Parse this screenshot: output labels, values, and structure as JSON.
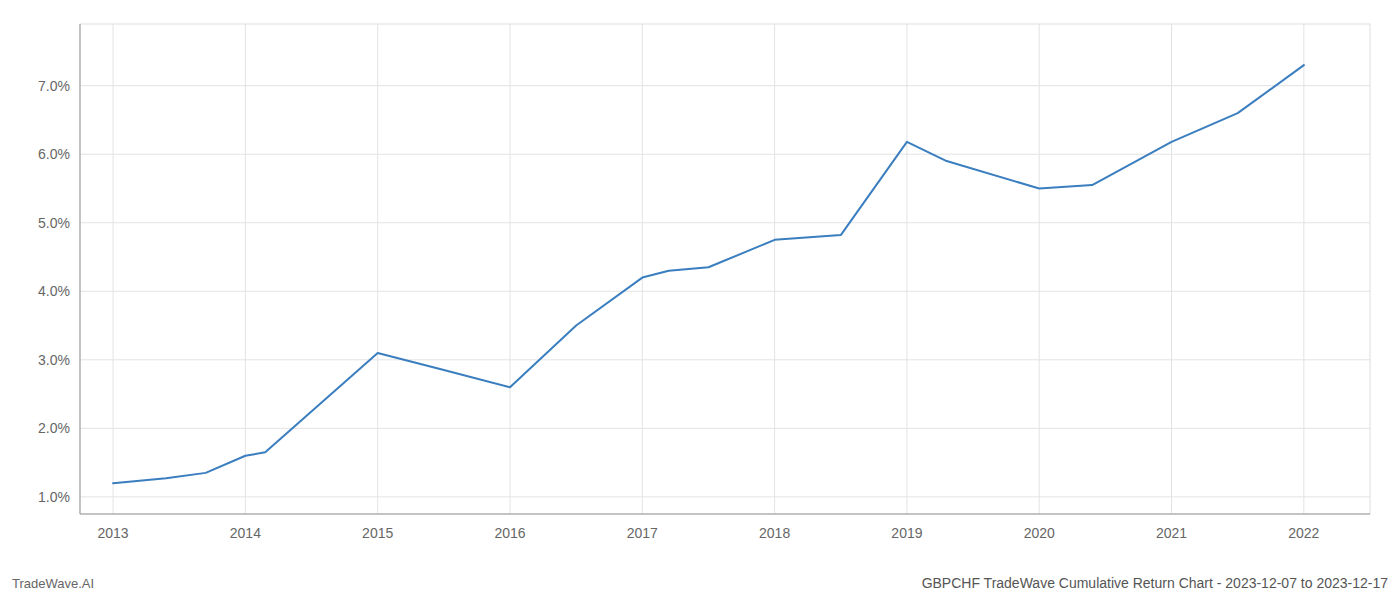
{
  "chart_data": {
    "type": "line",
    "title": "GBPCHF TradeWave Cumulative Return Chart - 2023-12-07 to 2023-12-17",
    "annotations": [
      "TradeWave.AI"
    ],
    "x": [
      2013.0,
      2013.4,
      2013.7,
      2014.0,
      2014.15,
      2015.0,
      2015.5,
      2016.0,
      2016.5,
      2017.0,
      2017.2,
      2017.5,
      2018.0,
      2018.5,
      2019.0,
      2019.3,
      2020.0,
      2020.4,
      2021.0,
      2021.5,
      2022.0
    ],
    "values": [
      1.2,
      1.27,
      1.35,
      1.6,
      1.65,
      3.1,
      2.85,
      2.6,
      3.5,
      4.2,
      4.3,
      4.35,
      4.75,
      4.82,
      6.18,
      5.9,
      5.5,
      5.55,
      6.18,
      6.6,
      7.3
    ],
    "color": "#3a7ebf",
    "xlim": [
      2012.75,
      2022.5
    ],
    "ylim": [
      0.75,
      7.9
    ],
    "xticks": [
      2013,
      2014,
      2015,
      2016,
      2017,
      2018,
      2019,
      2020,
      2021,
      2022
    ],
    "yticks": [
      {
        "value": 1.0,
        "label": "1.0%"
      },
      {
        "value": 2.0,
        "label": "2.0%"
      },
      {
        "value": 3.0,
        "label": "3.0%"
      },
      {
        "value": 4.0,
        "label": "4.0%"
      },
      {
        "value": 5.0,
        "label": "5.0%"
      },
      {
        "value": 6.0,
        "label": "6.0%"
      },
      {
        "value": 7.0,
        "label": "7.0%"
      }
    ],
    "grid": true
  }
}
